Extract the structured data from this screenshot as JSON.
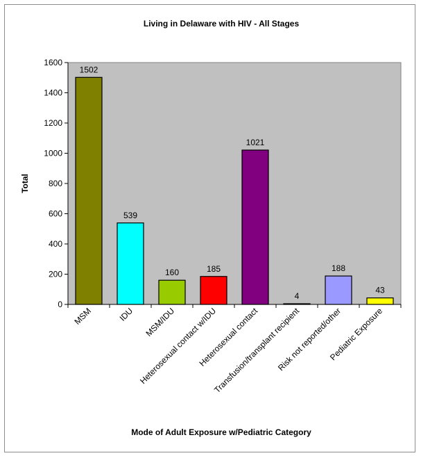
{
  "chart_data": {
    "type": "bar",
    "title": "Living in Delaware with HIV - All Stages",
    "xlabel": "Mode of Adult Exposure w/Pediatric Category",
    "ylabel": "Total",
    "ylim": [
      0,
      1600
    ],
    "yticks": [
      0,
      200,
      400,
      600,
      800,
      1000,
      1200,
      1400,
      1600
    ],
    "grid": false,
    "legend": "none",
    "plot_background": "#c0c0c0",
    "categories": [
      "MSM",
      "IDU",
      "MSM/IDU",
      "Heterosexual contact w/IDU",
      "Heterosexual contact",
      "Transfusion/transplant recipient",
      "Risk not reported/other",
      "Pediatric Exposure"
    ],
    "values": [
      1502,
      539,
      160,
      185,
      1021,
      4,
      188,
      43
    ],
    "colors": [
      "#808000",
      "#00ffff",
      "#99cc00",
      "#ff0000",
      "#800080",
      "#000000",
      "#9999ff",
      "#ffff00"
    ]
  }
}
